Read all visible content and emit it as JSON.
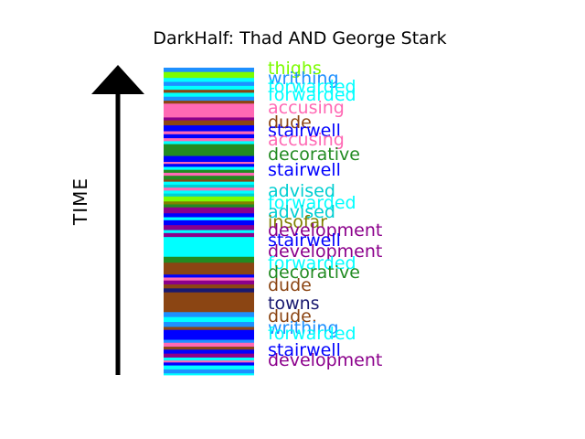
{
  "chart_data": {
    "type": "bar",
    "title": "DarkHalf: Thad AND George Stark",
    "ylabel": "TIME",
    "colors": {
      "thighs": "#7cfc00",
      "writhing": "#1e90ff",
      "forwarded": "#00ffff",
      "accusing": "#ff69b4",
      "dude": "#8b4513",
      "stairwell": "#0000ff",
      "decorative": "#228b22",
      "advised": "#00ced1",
      "insofar": "#808000",
      "development": "#8b008b",
      "towns": "#191970"
    },
    "bands": [
      {
        "word": "forwarded",
        "h": 2
      },
      {
        "word": "writhing",
        "h": 4
      },
      {
        "word": "forwarded",
        "h": 4
      },
      {
        "word": "stairwell",
        "h": 3
      },
      {
        "word": "accusing",
        "h": 2
      },
      {
        "word": "forwarded",
        "h": 3
      },
      {
        "word": "development",
        "h": 4
      },
      {
        "word": "stairwell",
        "h": 4
      },
      {
        "word": "dude",
        "h": 3
      },
      {
        "word": "accusing",
        "h": 4
      },
      {
        "word": "writhing",
        "h": 3
      },
      {
        "word": "stairwell",
        "h": 10
      },
      {
        "word": "dude",
        "h": 3
      },
      {
        "word": "writhing",
        "h": 5
      },
      {
        "word": "forwarded",
        "h": 5
      },
      {
        "word": "writhing",
        "h": 5
      },
      {
        "word": "dude",
        "h": 20
      },
      {
        "word": "towns",
        "h": 4
      },
      {
        "word": "dude",
        "h": 4
      },
      {
        "word": "development",
        "h": 4
      },
      {
        "word": "accusing",
        "h": 3
      },
      {
        "word": "stairwell",
        "h": 3
      },
      {
        "word": "dude",
        "h": 12
      },
      {
        "word": "decorative",
        "h": 6
      },
      {
        "word": "forwarded",
        "h": 20
      },
      {
        "word": "development",
        "h": 4
      },
      {
        "word": "forwarded",
        "h": 3
      },
      {
        "word": "development",
        "h": 5
      },
      {
        "word": "stairwell",
        "h": 5
      },
      {
        "word": "forwarded",
        "h": 3
      },
      {
        "word": "stairwell",
        "h": 4
      },
      {
        "word": "development",
        "h": 6
      },
      {
        "word": "decorative",
        "h": 3
      },
      {
        "word": "insofar",
        "h": 3
      },
      {
        "word": "thighs",
        "h": 5
      },
      {
        "word": "advised",
        "h": 3
      },
      {
        "word": "forwarded",
        "h": 3
      },
      {
        "word": "accusing",
        "h": 3
      },
      {
        "word": "advised",
        "h": 3
      },
      {
        "word": "forwarded",
        "h": 3
      },
      {
        "word": "dude",
        "h": 2
      },
      {
        "word": "decorative",
        "h": 4
      },
      {
        "word": "accusing",
        "h": 3
      },
      {
        "word": "decorative",
        "h": 3
      },
      {
        "word": "forwarded",
        "h": 3
      },
      {
        "word": "stairwell",
        "h": 3
      },
      {
        "word": "accusing",
        "h": 2
      },
      {
        "word": "stairwell",
        "h": 6
      },
      {
        "word": "decorative",
        "h": 12
      },
      {
        "word": "forwarded",
        "h": 3
      },
      {
        "word": "accusing",
        "h": 3
      },
      {
        "word": "stairwell",
        "h": 4
      },
      {
        "word": "accusing",
        "h": 3
      },
      {
        "word": "stairwell",
        "h": 6
      },
      {
        "word": "dude",
        "h": 5
      },
      {
        "word": "development",
        "h": 3
      },
      {
        "word": "accusing",
        "h": 14
      },
      {
        "word": "dude",
        "h": 3
      },
      {
        "word": "writhing",
        "h": 4
      },
      {
        "word": "forwarded",
        "h": 4
      },
      {
        "word": "dude",
        "h": 3
      },
      {
        "word": "forwarded",
        "h": 4
      },
      {
        "word": "writhing",
        "h": 4
      },
      {
        "word": "forwarded",
        "h": 4
      },
      {
        "word": "thighs",
        "h": 6
      },
      {
        "word": "writhing",
        "h": 4
      }
    ],
    "labels": [
      {
        "text": "thighs",
        "word": "thighs",
        "pos": 319
      },
      {
        "text": "writhing",
        "word": "writhing",
        "pos": 308
      },
      {
        "text": "forwarded",
        "word": "forwarded",
        "pos": 299
      },
      {
        "text": "forwarded",
        "word": "forwarded",
        "pos": 290
      },
      {
        "text": "accusing",
        "word": "accusing",
        "pos": 276
      },
      {
        "text": "dude",
        "word": "dude",
        "pos": 260
      },
      {
        "text": "stairwell",
        "word": "stairwell",
        "pos": 251
      },
      {
        "text": "accusing",
        "word": "accusing",
        "pos": 241
      },
      {
        "text": "decorative",
        "word": "decorative",
        "pos": 225
      },
      {
        "text": "stairwell",
        "word": "stairwell",
        "pos": 208
      },
      {
        "text": "advised",
        "word": "advised",
        "pos": 185
      },
      {
        "text": "forwarded",
        "word": "forwarded",
        "pos": 172
      },
      {
        "text": "advised",
        "word": "advised",
        "pos": 162
      },
      {
        "text": "insofar",
        "word": "insofar",
        "pos": 151
      },
      {
        "text": "development",
        "word": "development",
        "pos": 142
      },
      {
        "text": "stairwell",
        "word": "stairwell",
        "pos": 131
      },
      {
        "text": "development",
        "word": "development",
        "pos": 119
      },
      {
        "text": "forwarded",
        "word": "forwarded",
        "pos": 106
      },
      {
        "text": "decorative",
        "word": "decorative",
        "pos": 96
      },
      {
        "text": "dude",
        "word": "dude",
        "pos": 82
      },
      {
        "text": "towns",
        "word": "towns",
        "pos": 62
      },
      {
        "text": "dude.",
        "word": "dude",
        "pos": 48
      },
      {
        "text": "writhing",
        "word": "writhing",
        "pos": 35
      },
      {
        "text": "forwarded",
        "word": "forwarded",
        "pos": 29
      },
      {
        "text": "stairwell",
        "word": "stairwell",
        "pos": 11
      },
      {
        "text": "development",
        "word": "development",
        "pos": 0
      }
    ]
  }
}
